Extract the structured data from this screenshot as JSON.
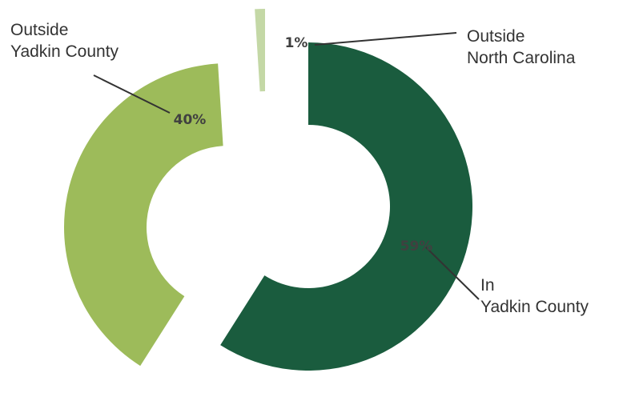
{
  "chart_data": {
    "type": "pie",
    "donut": true,
    "exploded": true,
    "legend": "none",
    "slices": [
      {
        "category_lines": [
          "In",
          "Yadkin County"
        ],
        "value": 59,
        "value_label": "59%",
        "color": "#1a5c3e"
      },
      {
        "category_lines": [
          "Outside",
          "Yadkin County"
        ],
        "value": 40,
        "value_label": "40%",
        "color": "#9dbb5a"
      },
      {
        "category_lines": [
          "Outside",
          "North Carolina"
        ],
        "value": 1,
        "value_label": "1%",
        "color": "#c4d8a6"
      }
    ]
  }
}
